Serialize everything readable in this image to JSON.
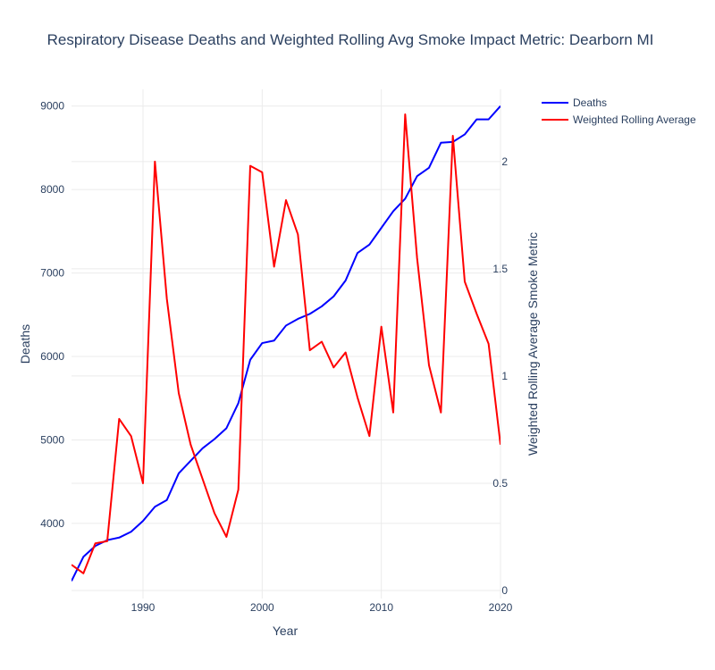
{
  "chart_data": {
    "type": "line",
    "title": "Respiratory Disease Deaths and Weighted Rolling Avg Smoke Impact Metric: Dearborn MI",
    "xlabel": "Year",
    "ylabel": "Deaths",
    "y2label": "Weighted Rolling Average Smoke Metric",
    "xlim": [
      1984,
      2020
    ],
    "ylim": [
      3100,
      9200
    ],
    "y2lim": [
      0,
      2.22
    ],
    "x_ticks": [
      1990,
      2000,
      2010,
      2020
    ],
    "y_ticks": [
      4000,
      5000,
      6000,
      7000,
      8000,
      9000
    ],
    "y2_ticks": [
      0,
      0.5,
      1,
      1.5,
      2
    ],
    "grid": true,
    "legend_position": "top-right",
    "series": [
      {
        "name": "Deaths",
        "axis": "y",
        "color": "#0000ff",
        "x": [
          1984,
          1985,
          1986,
          1987,
          1988,
          1989,
          1990,
          1991,
          1992,
          1993,
          1994,
          1995,
          1996,
          1997,
          1998,
          1999,
          2000,
          2001,
          2002,
          2003,
          2004,
          2005,
          2006,
          2007,
          2008,
          2009,
          2010,
          2011,
          2012,
          2013,
          2014,
          2015,
          2016,
          2017,
          2018,
          2019,
          2020
        ],
        "values": [
          3310,
          3600,
          3730,
          3800,
          3830,
          3900,
          4030,
          4200,
          4280,
          4600,
          4750,
          4900,
          5010,
          5140,
          5440,
          5960,
          6160,
          6190,
          6370,
          6450,
          6510,
          6600,
          6720,
          6910,
          7240,
          7340,
          7540,
          7740,
          7890,
          8160,
          8260,
          8560,
          8570,
          8660,
          8840,
          8840,
          9000
        ]
      },
      {
        "name": "Weighted Rolling Average",
        "axis": "y2",
        "color": "#ff0000",
        "x": [
          1984,
          1985,
          1986,
          1987,
          1988,
          1989,
          1990,
          1991,
          1992,
          1993,
          1994,
          1995,
          1996,
          1997,
          1998,
          1999,
          2000,
          2001,
          2002,
          2003,
          2004,
          2005,
          2006,
          2007,
          2008,
          2009,
          2010,
          2011,
          2012,
          2013,
          2014,
          2015,
          2016,
          2017,
          2018,
          2019,
          2020
        ],
        "values": [
          0.12,
          0.08,
          0.22,
          0.23,
          0.8,
          0.72,
          0.5,
          2.0,
          1.36,
          0.92,
          0.68,
          0.52,
          0.36,
          0.25,
          0.47,
          1.98,
          1.95,
          1.51,
          1.82,
          1.66,
          1.12,
          1.16,
          1.04,
          1.11,
          0.9,
          0.72,
          1.23,
          0.83,
          2.22,
          1.55,
          1.05,
          0.83,
          2.12,
          1.44,
          1.29,
          1.15,
          0.68
        ]
      }
    ]
  }
}
